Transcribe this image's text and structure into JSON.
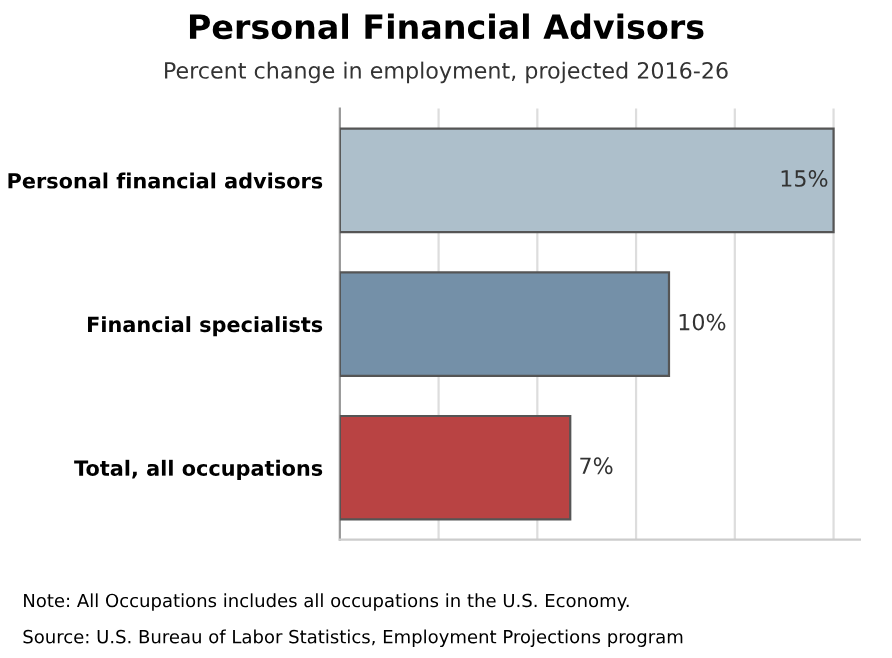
{
  "chart_data": {
    "type": "bar",
    "orientation": "horizontal",
    "title": "Personal Financial Advisors",
    "subtitle": "Percent change in employment, projected 2016-26",
    "categories": [
      "Personal financial advisors",
      "Financial specialists",
      "Total, all occupations"
    ],
    "values": [
      15,
      10,
      7
    ],
    "colors": [
      "#adbfcb",
      "#7490a8",
      "#b94343"
    ],
    "value_labels": [
      "15%",
      "10%",
      "7%"
    ],
    "xlim": [
      0,
      15.8
    ],
    "xticks": [
      {
        "value": 0,
        "label": null
      },
      {
        "value": 3,
        "label": null
      },
      {
        "value": 6,
        "label": null
      },
      {
        "value": 9,
        "label": null
      },
      {
        "value": 12,
        "label": null
      },
      {
        "value": 15,
        "label": null
      }
    ],
    "grid": "x",
    "tick_labels": "y",
    "annotations": [
      "Note: All Occupations includes all occupations in the U.S. Economy.",
      "Source: U.S. Bureau of Labor Statistics, Employment Projections program"
    ]
  }
}
